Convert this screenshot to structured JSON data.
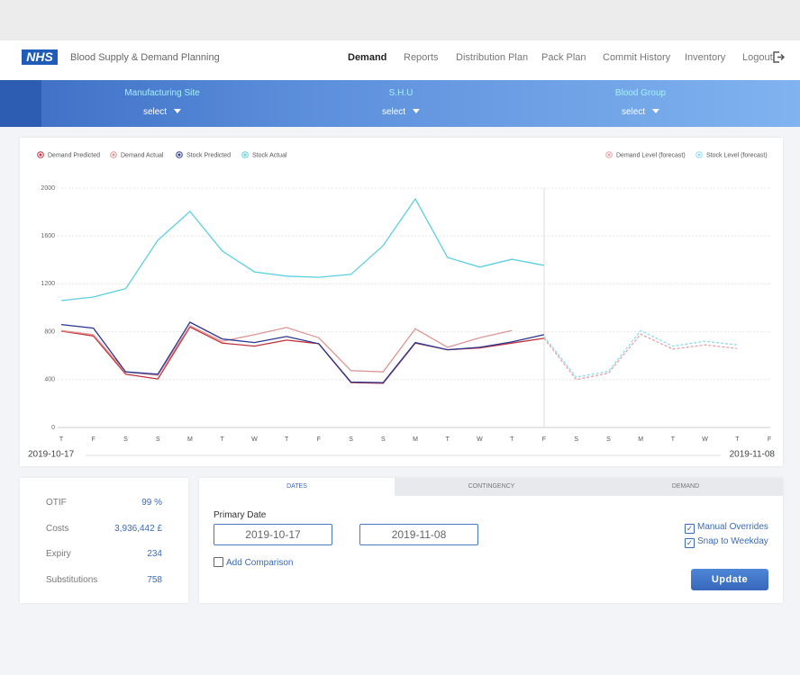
{
  "header": {
    "logo": "NHS",
    "title": "Blood Supply & Demand Planning",
    "nav": [
      "Demand",
      "Reports",
      "Distribution Plan",
      "Pack Plan",
      "Commit History",
      "Inventory",
      "Logout"
    ],
    "active": 0
  },
  "filters": [
    {
      "label": "Manufacturing Site",
      "value": "select"
    },
    {
      "label": "S.H.U",
      "value": "select"
    },
    {
      "label": "Blood Group",
      "value": "select"
    }
  ],
  "chart_data": {
    "type": "line",
    "categories": [
      "T",
      "F",
      "S",
      "S",
      "M",
      "T",
      "W",
      "T",
      "F",
      "S",
      "S",
      "M",
      "T",
      "W",
      "T",
      "F",
      "S",
      "S",
      "M",
      "T",
      "W",
      "T",
      "F"
    ],
    "series": [
      {
        "name": "Demand Predicted",
        "color": "#c0303a",
        "values": [
          805,
          765,
          445,
          405,
          840,
          705,
          680,
          730,
          700,
          375,
          370,
          705,
          650,
          665,
          705,
          745,
          null,
          null,
          null,
          null,
          null,
          null,
          null
        ]
      },
      {
        "name": "Demand Actual",
        "color": "#dc9696",
        "values": [
          810,
          775,
          465,
          435,
          850,
          720,
          775,
          835,
          750,
          475,
          465,
          825,
          670,
          750,
          810,
          null,
          null,
          null,
          null,
          null,
          null,
          null,
          null
        ]
      },
      {
        "name": "Stock Predicted",
        "color": "#2a3590",
        "values": [
          860,
          830,
          465,
          445,
          880,
          740,
          710,
          760,
          700,
          380,
          375,
          710,
          650,
          670,
          715,
          775,
          null,
          null,
          null,
          null,
          null,
          null,
          null
        ]
      },
      {
        "name": "Stock Actual",
        "color": "#5ccfe0",
        "values": [
          1060,
          1090,
          1160,
          1565,
          1805,
          1475,
          1300,
          1265,
          1255,
          1280,
          1520,
          1910,
          1420,
          1340,
          1405,
          1355,
          null,
          null,
          null,
          null,
          null,
          null,
          null
        ]
      },
      {
        "name": "Demand Level (forecast)",
        "color": "#e8a0a8",
        "dashed": true,
        "values": [
          null,
          null,
          null,
          null,
          null,
          null,
          null,
          null,
          null,
          null,
          null,
          null,
          null,
          null,
          null,
          745,
          400,
          455,
          780,
          655,
          690,
          660,
          null
        ]
      },
      {
        "name": "Stock Level (forecast)",
        "color": "#8edcea",
        "dashed": true,
        "values": [
          null,
          null,
          null,
          null,
          null,
          null,
          null,
          null,
          null,
          null,
          null,
          null,
          null,
          null,
          null,
          760,
          420,
          470,
          810,
          680,
          720,
          690,
          null
        ]
      }
    ],
    "ylim": [
      0,
      2000
    ],
    "yticks": [
      0,
      400,
      800,
      1200,
      1600,
      2000
    ],
    "grid": true,
    "start_label": "2019-10-17",
    "end_label": "2019-11-08"
  },
  "stats": [
    {
      "label": "OTIF",
      "value": "99 %"
    },
    {
      "label": "Costs",
      "value": "3,936,442 £"
    },
    {
      "label": "Expiry",
      "value": 234
    },
    {
      "label": "Substitutions",
      "value": 758
    }
  ],
  "form": {
    "tabs": [
      "DATES",
      "CONTINGENCY",
      "DEMAND"
    ],
    "primary_date_label": "Primary Date",
    "start_date": "2019-10-17",
    "end_date": "2019-11-08",
    "comparison": {
      "label": "Add Comparison",
      "checked": false
    },
    "options": [
      {
        "label": "Manual Overrides",
        "checked": true
      },
      {
        "label": "Snap to Weekday",
        "checked": true
      }
    ],
    "button": "Update"
  }
}
